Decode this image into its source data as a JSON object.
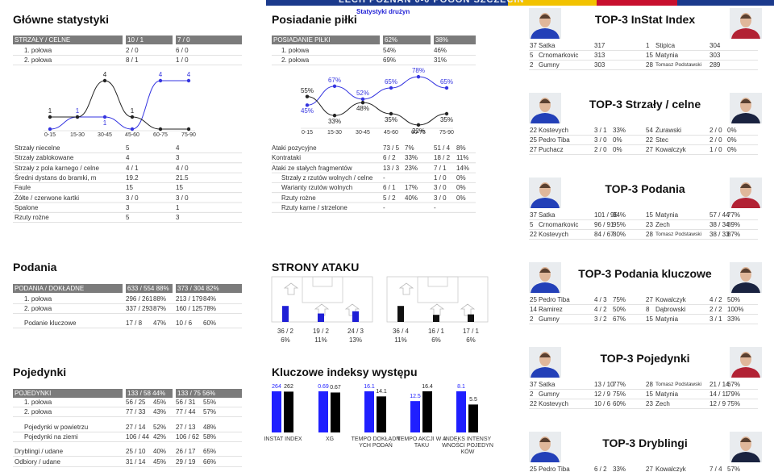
{
  "header": {
    "match": "LECH POZNAŃ 0-0 POGOŃ SZCZECIN",
    "subtitle": "Statystyki drużyn"
  },
  "main_stats": {
    "title": "Główne statystyki",
    "header": [
      "STRZAŁY / CELNE",
      "10 / 1",
      "7 / 0"
    ],
    "halves": [
      [
        "1. połowa",
        "2 / 0",
        "6 / 0"
      ],
      [
        "2. połowa",
        "8 / 1",
        "1 / 0"
      ]
    ],
    "rows": [
      [
        "Strzały niecelne",
        "5",
        "4"
      ],
      [
        "Strzały zablokowane",
        "4",
        "3"
      ],
      [
        "Strzały z pola karnego / celne",
        "4 / 1",
        "4 / 0"
      ],
      [
        "Średni dystans do bramki, m",
        "19.2",
        "21.5"
      ],
      [
        "Faule",
        "15",
        "15"
      ],
      [
        "Żółte / czerwone kartki",
        "3 / 0",
        "3 / 0"
      ],
      [
        "Spalone",
        "3",
        "1"
      ],
      [
        "Rzuty rożne",
        "5",
        "3"
      ]
    ]
  },
  "passes": {
    "title": "Podania",
    "header": [
      "PODANIA / DOKŁADNE",
      "633 / 554 88%",
      "373 / 304 82%"
    ],
    "rows": [
      [
        "1. połowa",
        "296 / 261",
        "88%",
        "213 / 179",
        "84%"
      ],
      [
        "2. połowa",
        "337 / 293",
        "87%",
        "160 / 125",
        "78%"
      ],
      [
        "Podanie kluczowe",
        "17 / 8",
        "47%",
        "10 / 6",
        "60%"
      ]
    ]
  },
  "duels": {
    "title": "Pojedynki",
    "header": [
      "POJEDYNKI",
      "133 / 58 44%",
      "133 / 75 56%"
    ],
    "rows": [
      [
        "1. połowa",
        "56 / 25",
        "45%",
        "56 / 31",
        "55%"
      ],
      [
        "2. połowa",
        "77 / 33",
        "43%",
        "77 / 44",
        "57%"
      ],
      [
        "Pojedynki w powietrzu",
        "27 / 14",
        "52%",
        "27 / 13",
        "48%"
      ],
      [
        "Pojedynki na ziemi",
        "106 / 44",
        "42%",
        "106 / 62",
        "58%"
      ],
      [
        "Dryblingi / udane",
        "25 / 10",
        "40%",
        "26 / 17",
        "65%"
      ],
      [
        "Odbiory / udane",
        "31 / 14",
        "45%",
        "29 / 19",
        "66%"
      ]
    ]
  },
  "possession": {
    "title": "Posiadanie piłki",
    "header": [
      "POSIADANIE PIŁKI",
      "62%",
      "38%"
    ],
    "halves": [
      [
        "1. połowa",
        "54%",
        "46%"
      ],
      [
        "2. połowa",
        "69%",
        "31%"
      ]
    ],
    "rows": [
      [
        "Ataki pozycyjne",
        "73 / 5",
        "7%",
        "51 / 4",
        "8%"
      ],
      [
        "Kontrataki",
        "6 / 2",
        "33%",
        "18 / 2",
        "11%"
      ],
      [
        "Ataki ze stałych fragmentów",
        "13 / 3",
        "23%",
        "7 / 1",
        "14%"
      ],
      [
        "Strzały z rzutów wolnych / celne",
        "-",
        null,
        "1 / 0",
        "0%"
      ],
      [
        "Warianty rzutów wolnych",
        "6 / 1",
        "17%",
        "3 / 0",
        "0%"
      ],
      [
        "Rzuty rożne",
        "5 / 2",
        "40%",
        "3 / 0",
        "0%"
      ],
      [
        "Rzuty karne / strzelone",
        "-",
        null,
        "-",
        null
      ]
    ]
  },
  "attack_sides": {
    "title": "STRONY ATAKU",
    "teams": [
      {
        "color": "#1f1fd6",
        "sides": [
          {
            "attacks": "36 / 2",
            "pct": "6%"
          },
          {
            "attacks": "19 / 2",
            "pct": "11%"
          },
          {
            "attacks": "24 / 3",
            "pct": "13%"
          }
        ]
      },
      {
        "color": "#111111",
        "sides": [
          {
            "attacks": "36 / 4",
            "pct": "11%"
          },
          {
            "attacks": "16 / 1",
            "pct": "6%"
          },
          {
            "attacks": "17 / 1",
            "pct": "6%"
          }
        ]
      }
    ]
  },
  "chart_data": [
    {
      "type": "line",
      "categories": [
        "0-15",
        "15-30",
        "30-45",
        "45-60",
        "60-75",
        "75-90"
      ],
      "ylim": [
        0,
        4
      ],
      "series": [
        {
          "color": "#3434e0",
          "values": [
            0,
            1,
            1,
            0,
            4,
            4
          ],
          "value_labels": [
            null,
            "1",
            "1",
            null,
            "4",
            "4"
          ]
        },
        {
          "color": "#222222",
          "values": [
            1,
            1,
            4,
            1,
            0,
            0
          ],
          "value_labels": [
            "1",
            null,
            "4",
            "1",
            null,
            null
          ]
        }
      ]
    },
    {
      "type": "line",
      "categories": [
        "0-15",
        "15-30",
        "30-45",
        "45-60",
        "60-75",
        "75-90"
      ],
      "ylim": [
        20,
        80
      ],
      "series": [
        {
          "color": "#3434e0",
          "values": [
            45,
            67,
            52,
            65,
            78,
            65
          ],
          "value_labels": [
            "45%",
            "67%",
            "52%",
            "65%",
            "78%",
            "65%"
          ]
        },
        {
          "color": "#222222",
          "values": [
            55,
            33,
            48,
            35,
            22,
            35
          ],
          "value_labels": [
            "55%",
            "33%",
            "48%",
            "35%",
            "22%",
            "35%"
          ]
        }
      ]
    },
    {
      "type": "bar",
      "title": "Kluczowe indeksy występu",
      "categories": [
        "INSTAT INDEX",
        "XG",
        "TEMPO DOKŁADNYCH PODAŃ",
        "TEMPO AKCJI W ATAKU",
        "INDEKS INTENSYWNOŚCI POJEDYNKÓW"
      ],
      "series": [
        {
          "color": "#1f1fff",
          "values": [
            264,
            0.69,
            16.1,
            12.5,
            8.1
          ]
        },
        {
          "color": "#000000",
          "values": [
            262,
            0.67,
            14.1,
            16.4,
            5.5
          ]
        }
      ]
    }
  ],
  "top3": [
    {
      "title": "TOP-3 InStat Index",
      "rows": [
        {
          "home": [
            "37",
            "Satka",
            "317"
          ],
          "away": [
            "1",
            "Stipica",
            "304"
          ]
        },
        {
          "home": [
            "5",
            "Crnomarkovic",
            "313"
          ],
          "away": [
            "15",
            "Matynia",
            "303"
          ]
        },
        {
          "home": [
            "2",
            "Gumny",
            "303"
          ],
          "away": [
            "28",
            "Tomasz Podstawski",
            "289"
          ]
        }
      ]
    },
    {
      "title": "TOP-3 Strzały / celne",
      "rows": [
        {
          "home": [
            "22",
            "Kostevych",
            "3 / 1",
            "33%"
          ],
          "away": [
            "54",
            "Żurawski",
            "2 / 0",
            "0%"
          ]
        },
        {
          "home": [
            "25",
            "Pedro Tiba",
            "3 / 0",
            "0%"
          ],
          "away": [
            "22",
            "Stec",
            "2 / 0",
            "0%"
          ]
        },
        {
          "home": [
            "27",
            "Puchacz",
            "2 / 0",
            "0%"
          ],
          "away": [
            "27",
            "Kowalczyk",
            "1 / 0",
            "0%"
          ]
        }
      ]
    },
    {
      "title": "TOP-3 Podania",
      "rows": [
        {
          "home": [
            "37",
            "Satka",
            "101 / 95",
            "94%"
          ],
          "away": [
            "15",
            "Matynia",
            "57 / 44",
            "77%"
          ]
        },
        {
          "home": [
            "5",
            "Crnomarkovic",
            "96 / 91",
            "95%"
          ],
          "away": [
            "23",
            "Zech",
            "38 / 34",
            "89%"
          ]
        },
        {
          "home": [
            "22",
            "Kostevych",
            "84 / 67",
            "80%"
          ],
          "away": [
            "28",
            "Tomasz Podstawski",
            "38 / 33",
            "87%"
          ]
        }
      ]
    },
    {
      "title": "TOP-3 Podania kluczowe",
      "rows": [
        {
          "home": [
            "25",
            "Pedro Tiba",
            "4 / 3",
            "75%"
          ],
          "away": [
            "27",
            "Kowalczyk",
            "4 / 2",
            "50%"
          ]
        },
        {
          "home": [
            "14",
            "Ramirez",
            "4 / 2",
            "50%"
          ],
          "away": [
            "8",
            "Dąbrowski",
            "2 / 2",
            "100%"
          ]
        },
        {
          "home": [
            "2",
            "Gumny",
            "3 / 2",
            "67%"
          ],
          "away": [
            "15",
            "Matynia",
            "3 / 1",
            "33%"
          ]
        }
      ]
    },
    {
      "title": "TOP-3 Pojedynki",
      "rows": [
        {
          "home": [
            "37",
            "Satka",
            "13 / 10",
            "77%"
          ],
          "away": [
            "28",
            "Tomasz Podstawski",
            "21 / 14",
            "67%"
          ]
        },
        {
          "home": [
            "2",
            "Gumny",
            "12 / 9",
            "75%"
          ],
          "away": [
            "15",
            "Matynia",
            "14 / 11",
            "79%"
          ]
        },
        {
          "home": [
            "22",
            "Kostevych",
            "10 / 6",
            "60%"
          ],
          "away": [
            "23",
            "Zech",
            "12 / 9",
            "75%"
          ]
        }
      ]
    },
    {
      "title": "TOP-3 Dryblingi",
      "rows": [
        {
          "home": [
            "25",
            "Pedro Tiba",
            "6 / 2",
            "33%"
          ],
          "away": [
            "27",
            "Kowalczyk",
            "7 / 4",
            "57%"
          ]
        }
      ]
    }
  ]
}
